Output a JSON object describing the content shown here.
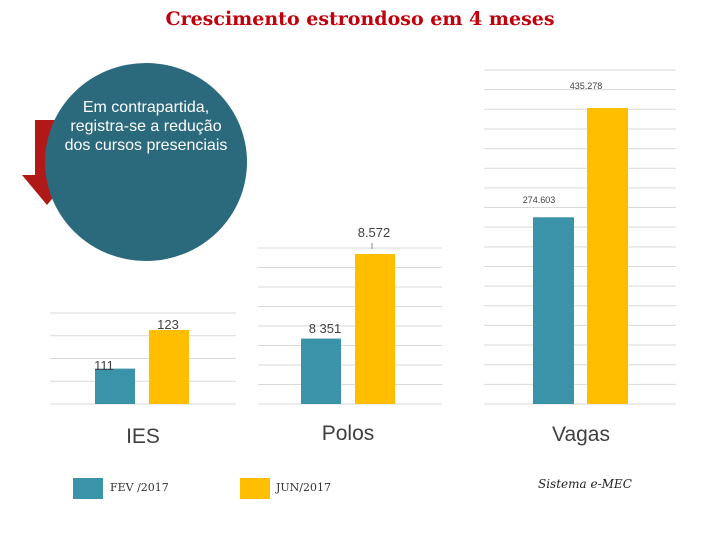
{
  "title": "Crescimento estrondoso em 4 meses",
  "callout": "Em contrapartida, registra-se a redução dos cursos presenciais",
  "source": "Sistema e-MEC",
  "colors": {
    "series1": "#3a93a8",
    "series2": "#ffbe00",
    "title": "#c0000b",
    "callout": "#2b6a7c",
    "arrow": "#b11818"
  },
  "legend": [
    {
      "label": "FEV /2017",
      "color": "#3a93a8"
    },
    {
      "label": "JUN/2017",
      "color": "#ffbe00"
    }
  ],
  "chart_data": [
    {
      "type": "bar",
      "category": "IES",
      "series": [
        {
          "name": "FEV /2017",
          "values": [
            111
          ],
          "label": "111"
        },
        {
          "name": "JUN/2017",
          "values": [
            123
          ],
          "label": "123"
        }
      ],
      "grid": true
    },
    {
      "type": "bar",
      "category": "Polos",
      "series": [
        {
          "name": "FEV /2017",
          "values": [
            8351
          ],
          "label": "8 351"
        },
        {
          "name": "JUN/2017",
          "values": [
            8572
          ],
          "label": "8.572"
        }
      ],
      "grid": true
    },
    {
      "type": "bar",
      "category": "Vagas",
      "series": [
        {
          "name": "FEV /2017",
          "values": [
            274603
          ],
          "label": "274.603"
        },
        {
          "name": "JUN/2017",
          "values": [
            435278
          ],
          "label": "435.278"
        }
      ],
      "grid": true
    }
  ]
}
